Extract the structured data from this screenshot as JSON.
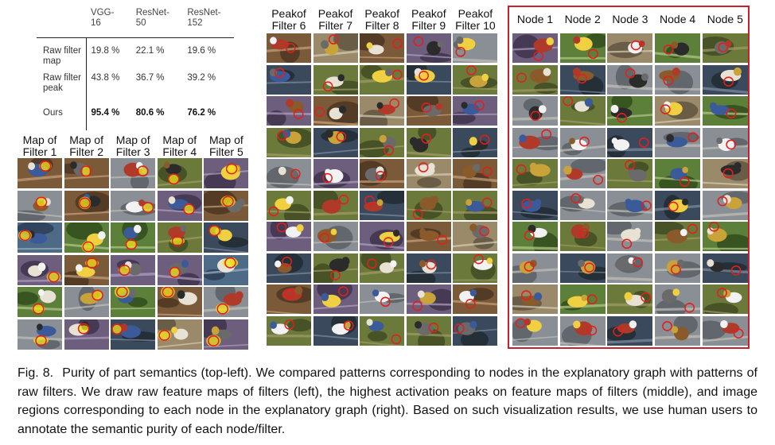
{
  "table": {
    "columns": [
      "VGG-\n16",
      "ResNet-\n50",
      "ResNet-\n152"
    ],
    "rows": [
      {
        "label": "Raw filter\nmap",
        "values": [
          "19.8 %",
          "22.1 %",
          "19.6 %"
        ]
      },
      {
        "label": "Raw filter\npeak",
        "values": [
          "43.8 %",
          "36.7 %",
          "39.2 %"
        ]
      },
      {
        "label": "Ours",
        "values": [
          "95.4 %",
          "80.6 %",
          "76.2 %"
        ]
      }
    ]
  },
  "groups": {
    "map": {
      "headers": [
        "Map of\nFilter 1",
        "Map of\nFilter 2",
        "Map of\nFilter 3",
        "Map of\nFilter 4",
        "Map of\nFilter 5"
      ]
    },
    "peak": {
      "headers": [
        "Peakof\nFilter 6",
        "Peakof\nFilter 7",
        "Peakof\nFilter 8",
        "Peakof\nFilter 9",
        "Peakof\nFilter 10"
      ]
    },
    "node": {
      "headers": [
        "Node 1",
        "Node 2",
        "Node 3",
        "Node 4",
        "Node 5"
      ]
    }
  },
  "caption": {
    "fig_label": "Fig. 8.",
    "text": "Purity of part semantics (top-left). We compared patterns corresponding to nodes in the explanatory graph with patterns of raw filters. We draw raw feature maps of filters (left), the highest activation peaks on feature maps of filters (middle), and image regions corresponding to each node in the explanatory graph (right). Based on such visualization results, we use human users to annotate the semantic purity of each node/filter."
  },
  "colors": {
    "highlight_circle": "#e0201c",
    "highlight_fill": "#f5e21a",
    "node_box_border": "#c8202c"
  }
}
